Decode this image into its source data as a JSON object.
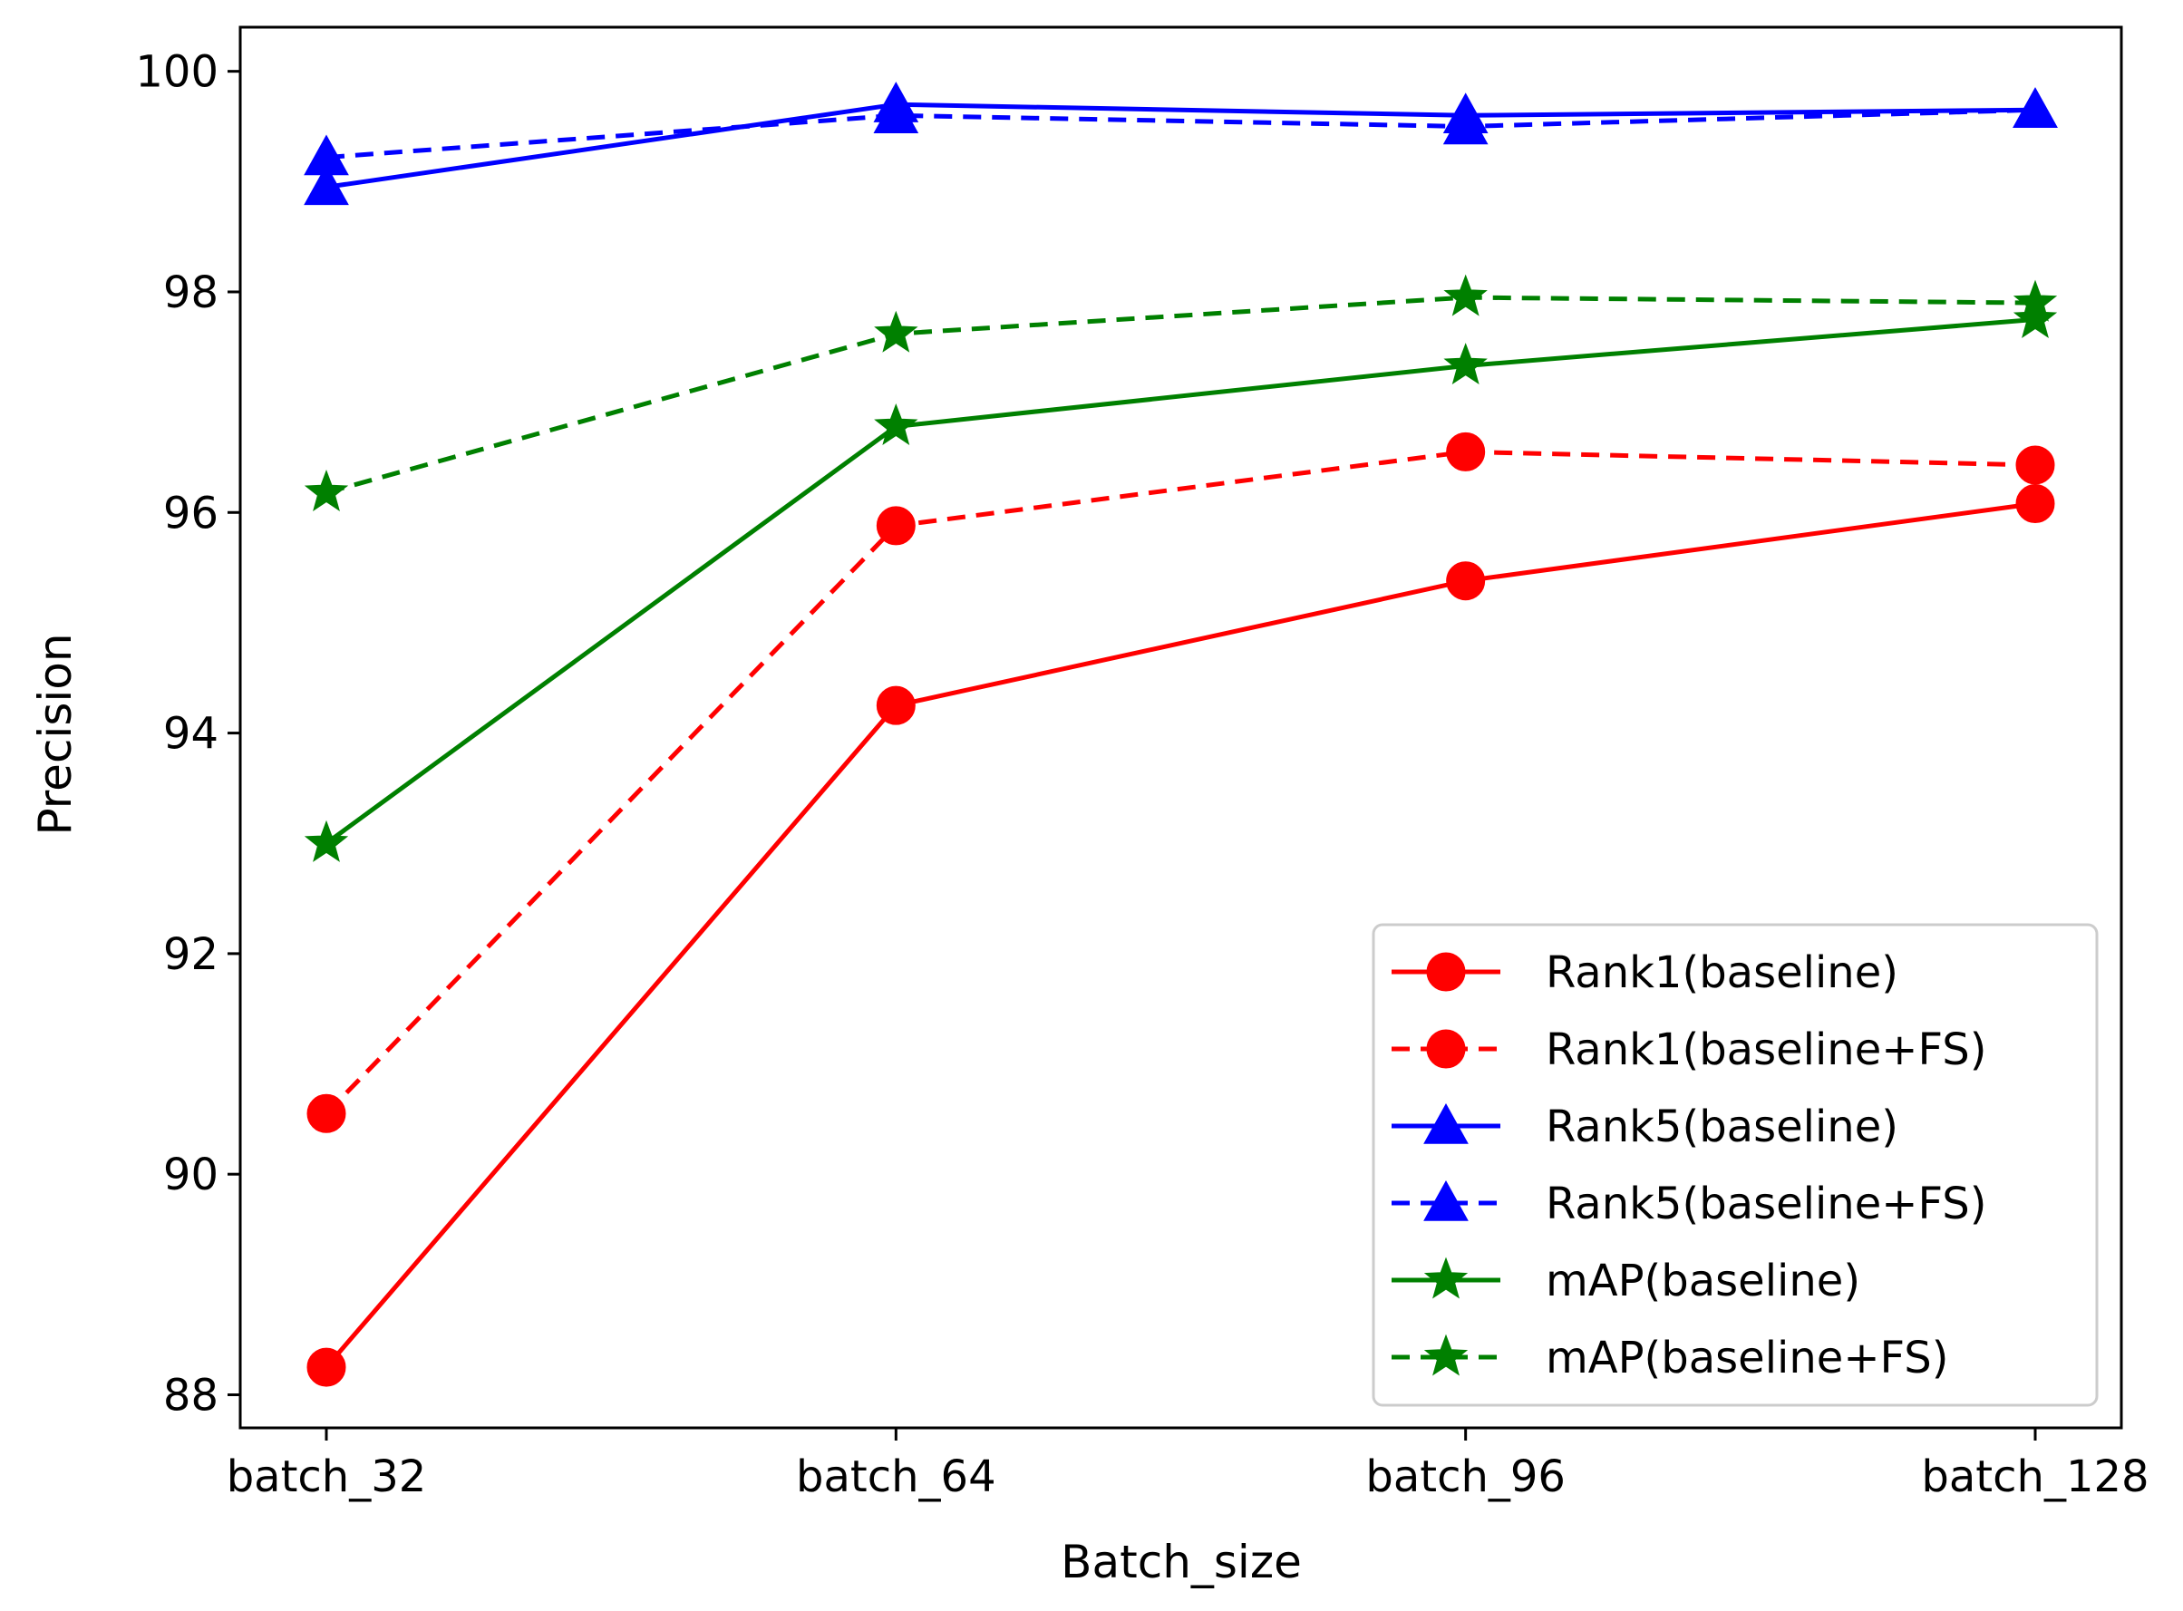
{
  "chart_data": {
    "type": "line",
    "title": "",
    "xlabel": "Batch_size",
    "ylabel": "Precision",
    "categories": [
      "batch_32",
      "batch_64",
      "batch_96",
      "batch_128"
    ],
    "ylim": [
      87.7,
      100.4
    ],
    "yticks": [
      88,
      90,
      92,
      94,
      96,
      98,
      100
    ],
    "grid": false,
    "legend_position": "bottom-right",
    "series": [
      {
        "name": "Rank1(baseline)",
        "color": "#ff0000",
        "dash": "solid",
        "marker": "circle",
        "values": [
          88.25,
          94.25,
          95.38,
          96.08
        ]
      },
      {
        "name": "Rank1(baseline+FS)",
        "color": "#ff0000",
        "dash": "dashed",
        "marker": "circle",
        "values": [
          90.55,
          95.88,
          96.55,
          96.43
        ]
      },
      {
        "name": "Rank5(baseline)",
        "color": "#0000ff",
        "dash": "solid",
        "marker": "triangle",
        "values": [
          98.95,
          99.7,
          99.6,
          99.65
        ]
      },
      {
        "name": "Rank5(baseline+FS)",
        "color": "#0000ff",
        "dash": "dashed",
        "marker": "triangle",
        "values": [
          99.22,
          99.6,
          99.5,
          99.65
        ]
      },
      {
        "name": "mAP(baseline)",
        "color": "#008000",
        "dash": "solid",
        "marker": "star",
        "values": [
          93.0,
          96.78,
          97.33,
          97.75
        ]
      },
      {
        "name": "mAP(baseline+FS)",
        "color": "#008000",
        "dash": "dashed",
        "marker": "star",
        "values": [
          96.18,
          97.62,
          97.95,
          97.9
        ]
      }
    ]
  }
}
